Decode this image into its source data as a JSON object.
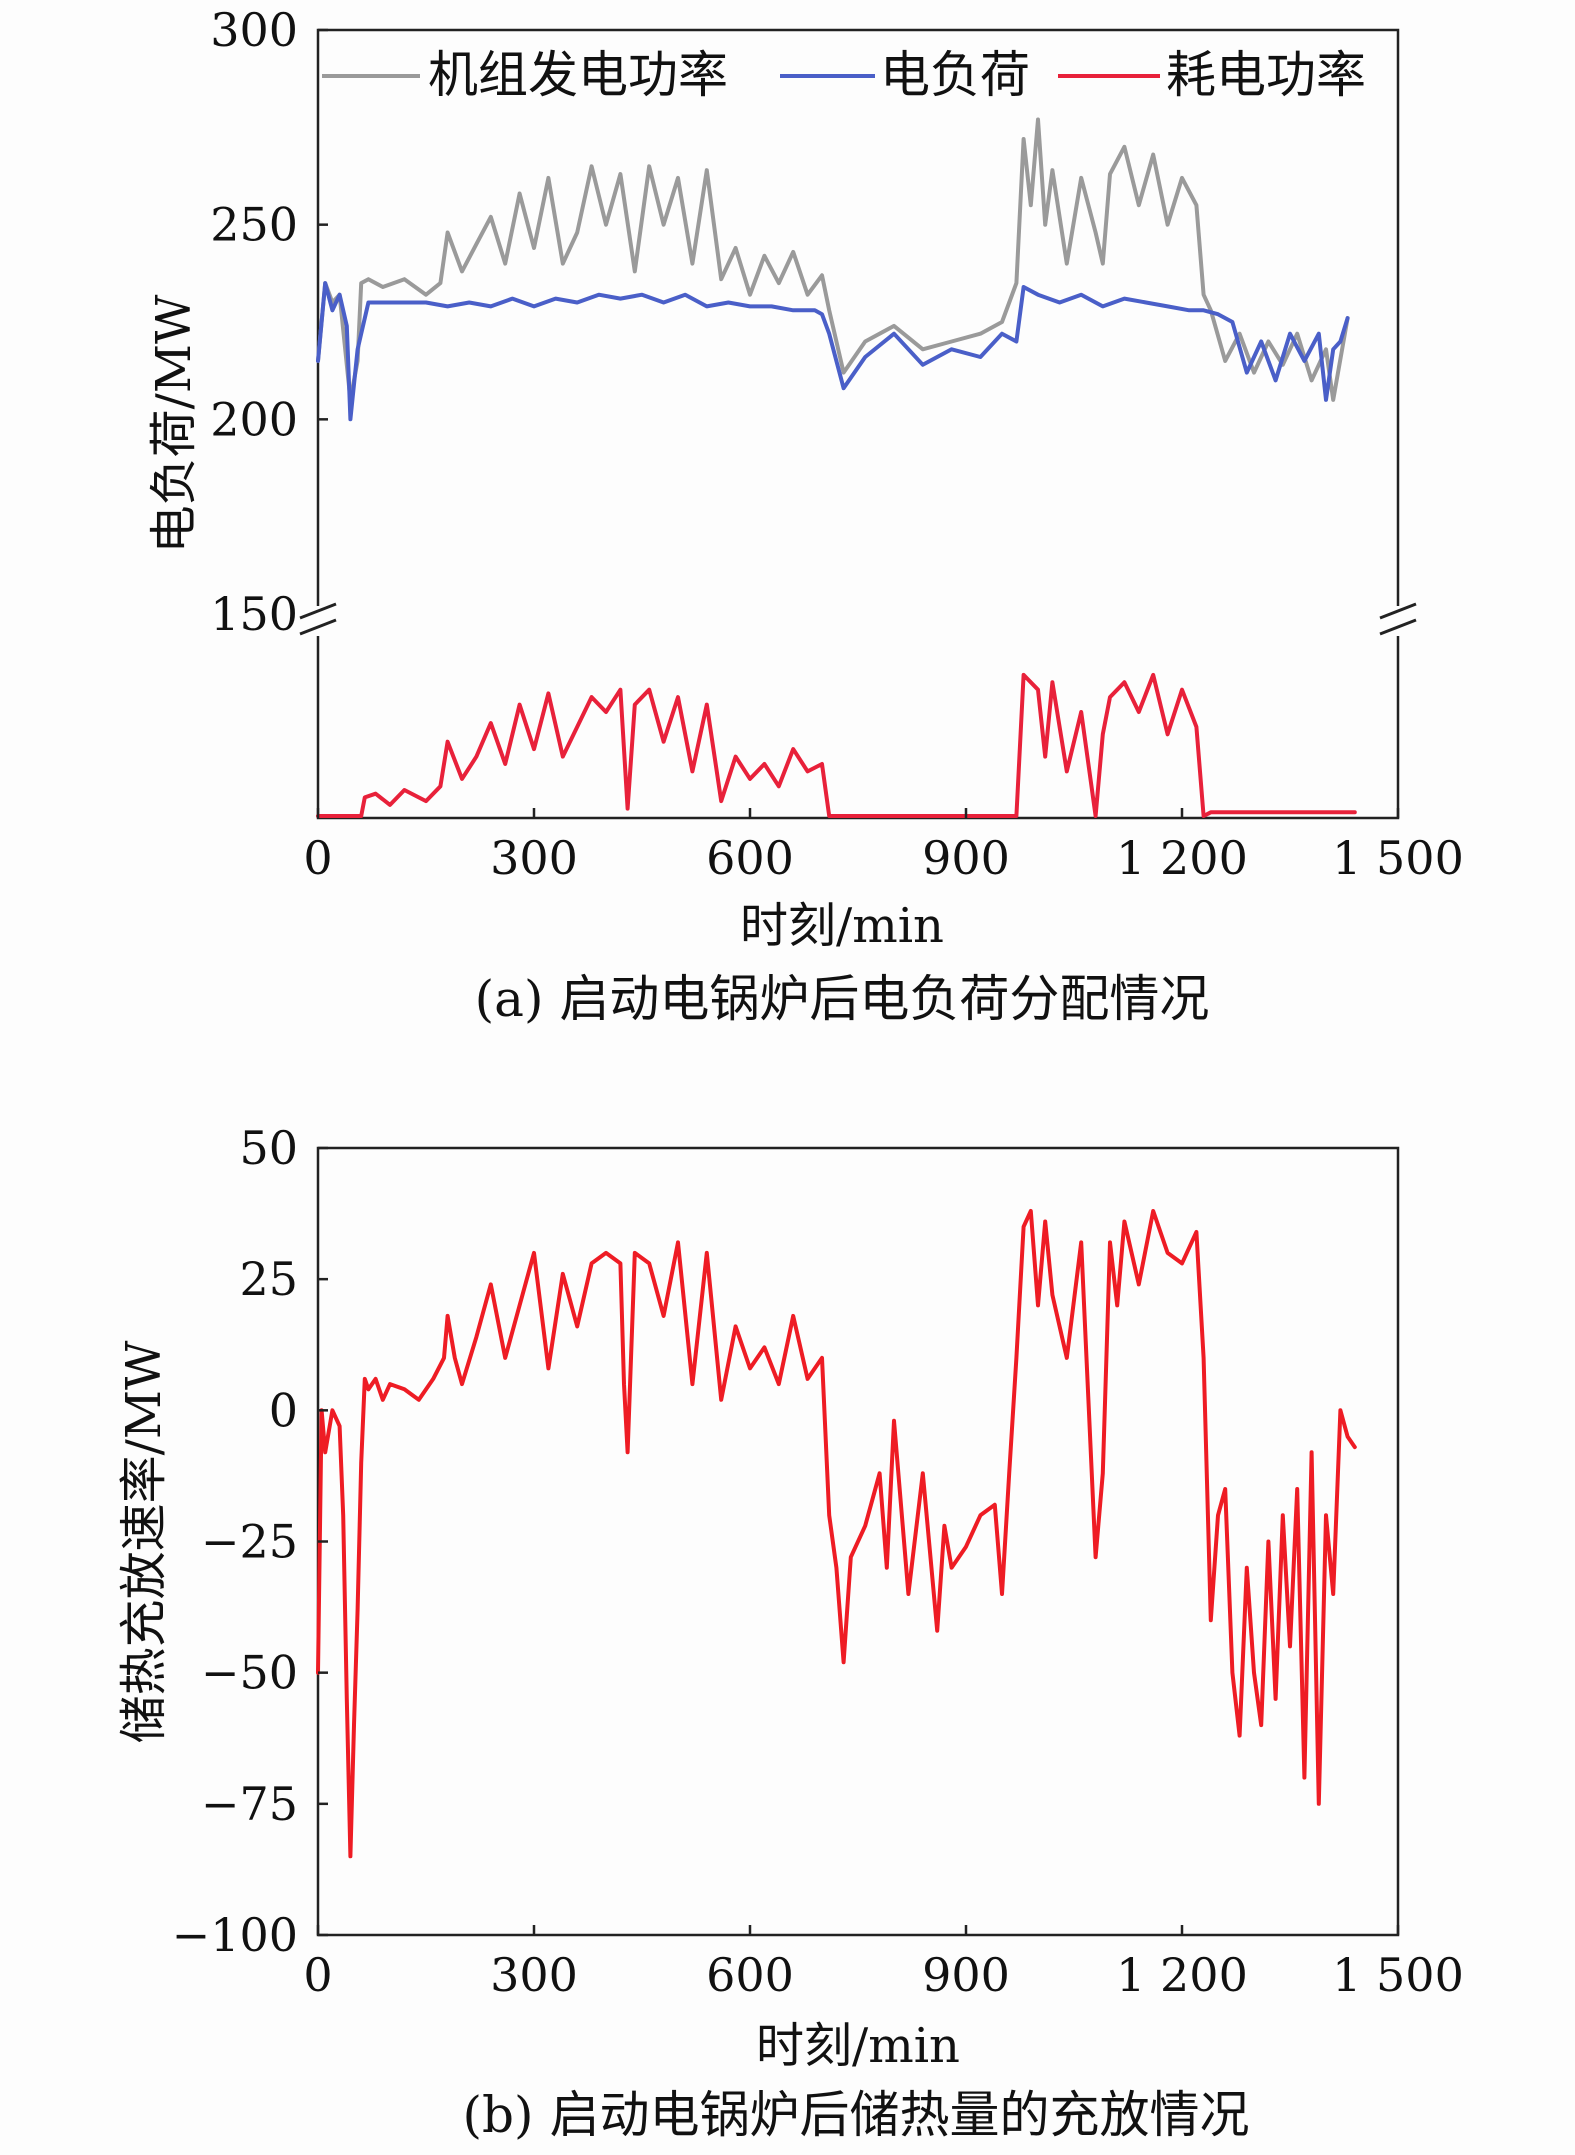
{
  "colors": {
    "generation": "#9a9a9a",
    "load": "#4a5fc8",
    "consumption": "#e8213a",
    "storage": "#ee1c24",
    "axis": "#222222"
  },
  "chart_data": [
    {
      "type": "line",
      "caption": "(a) 启动电锅炉后电负荷分配情况",
      "xlabel": "时刻/min",
      "ylabel": "电负荷/MW",
      "xlim": [
        0,
        1500
      ],
      "x_ticks": [
        "0",
        "300",
        "600",
        "900",
        "1 200",
        "1 500"
      ],
      "y_ticks": [
        "150",
        "200",
        "250",
        "300"
      ],
      "ylim_upper": [
        150,
        300
      ],
      "axis_break": true,
      "grid": false,
      "legend": {
        "position": "top",
        "items": [
          "机组发电功率",
          "电负荷",
          "耗电功率"
        ]
      },
      "series": [
        {
          "name": "机组发电功率",
          "x": [
            0,
            10,
            20,
            30,
            45,
            55,
            60,
            70,
            90,
            120,
            150,
            170,
            180,
            200,
            220,
            240,
            260,
            280,
            300,
            320,
            340,
            360,
            380,
            400,
            420,
            440,
            460,
            480,
            500,
            520,
            540,
            560,
            580,
            600,
            620,
            640,
            660,
            680,
            700,
            710,
            730,
            760,
            800,
            840,
            880,
            920,
            950,
            970,
            980,
            990,
            1000,
            1010,
            1020,
            1040,
            1060,
            1080,
            1090,
            1100,
            1120,
            1140,
            1160,
            1180,
            1200,
            1220,
            1230,
            1240,
            1260,
            1280,
            1300,
            1320,
            1340,
            1360,
            1380,
            1400,
            1410,
            1430
          ],
          "y": [
            215,
            235,
            230,
            232,
            205,
            215,
            235,
            236,
            234,
            236,
            232,
            235,
            248,
            238,
            245,
            252,
            240,
            258,
            244,
            262,
            240,
            248,
            265,
            250,
            263,
            238,
            265,
            250,
            262,
            240,
            264,
            236,
            244,
            232,
            242,
            235,
            243,
            232,
            237,
            228,
            212,
            220,
            224,
            218,
            220,
            222,
            225,
            235,
            272,
            255,
            277,
            250,
            264,
            240,
            262,
            248,
            240,
            263,
            270,
            255,
            268,
            250,
            262,
            255,
            232,
            228,
            215,
            222,
            212,
            220,
            214,
            222,
            210,
            218,
            205,
            226
          ]
        },
        {
          "name": "电负荷",
          "x": [
            0,
            10,
            20,
            30,
            40,
            45,
            55,
            60,
            70,
            90,
            120,
            150,
            180,
            210,
            240,
            270,
            300,
            330,
            360,
            390,
            420,
            450,
            480,
            510,
            540,
            570,
            600,
            630,
            660,
            690,
            700,
            710,
            730,
            760,
            800,
            840,
            880,
            920,
            950,
            970,
            980,
            1000,
            1030,
            1060,
            1090,
            1120,
            1150,
            1180,
            1210,
            1230,
            1250,
            1270,
            1290,
            1310,
            1330,
            1350,
            1370,
            1390,
            1400,
            1410,
            1420,
            1430
          ],
          "y": [
            215,
            235,
            228,
            232,
            224,
            200,
            218,
            222,
            230,
            230,
            230,
            230,
            229,
            230,
            229,
            231,
            229,
            231,
            230,
            232,
            231,
            232,
            230,
            232,
            229,
            230,
            229,
            229,
            228,
            228,
            227,
            222,
            208,
            216,
            222,
            214,
            218,
            216,
            222,
            220,
            234,
            232,
            230,
            232,
            229,
            231,
            230,
            229,
            228,
            228,
            227,
            225,
            212,
            220,
            210,
            222,
            215,
            222,
            205,
            218,
            220,
            226
          ]
        },
        {
          "name": "耗电功率",
          "x": [
            0,
            60,
            65,
            80,
            100,
            120,
            150,
            170,
            180,
            200,
            220,
            240,
            260,
            280,
            300,
            320,
            340,
            360,
            380,
            400,
            420,
            430,
            440,
            460,
            480,
            500,
            520,
            540,
            560,
            580,
            600,
            620,
            640,
            660,
            680,
            700,
            710,
            960,
            970,
            980,
            1000,
            1010,
            1020,
            1040,
            1060,
            1080,
            1090,
            1100,
            1120,
            1140,
            1160,
            1180,
            1200,
            1220,
            1230,
            1240,
            1280,
            1440
          ],
          "y": [
            0,
            0,
            5,
            6,
            3,
            7,
            4,
            8,
            20,
            10,
            16,
            25,
            14,
            30,
            18,
            33,
            16,
            24,
            32,
            28,
            34,
            2,
            30,
            34,
            20,
            32,
            12,
            30,
            4,
            16,
            10,
            14,
            8,
            18,
            12,
            14,
            0,
            0,
            0,
            38,
            34,
            16,
            36,
            12,
            28,
            0,
            22,
            32,
            36,
            28,
            38,
            22,
            34,
            24,
            0,
            1,
            1,
            1
          ]
        }
      ]
    },
    {
      "type": "line",
      "caption": "(b) 启动电锅炉后储热量的充放情况",
      "xlabel": "时刻/min",
      "ylabel": "储热充放速率/MW",
      "xlim": [
        0,
        1500
      ],
      "ylim": [
        -100,
        50
      ],
      "x_ticks": [
        "0",
        "300",
        "600",
        "900",
        "1 200",
        "1 500"
      ],
      "y_ticks": [
        "50",
        "25",
        "0",
        "−25",
        "−50",
        "−75",
        "−100"
      ],
      "y_tick_values": [
        50,
        25,
        0,
        -25,
        -50,
        -75,
        -100
      ],
      "grid": false,
      "series": [
        {
          "x": [
            0,
            5,
            10,
            20,
            30,
            35,
            40,
            45,
            50,
            55,
            60,
            65,
            70,
            80,
            90,
            100,
            120,
            140,
            160,
            175,
            180,
            190,
            200,
            220,
            240,
            260,
            280,
            300,
            320,
            340,
            360,
            380,
            400,
            420,
            425,
            430,
            440,
            460,
            480,
            500,
            520,
            540,
            560,
            580,
            600,
            620,
            640,
            660,
            680,
            700,
            710,
            720,
            730,
            740,
            760,
            780,
            790,
            800,
            820,
            840,
            860,
            870,
            880,
            900,
            920,
            940,
            950,
            960,
            970,
            980,
            990,
            1000,
            1010,
            1020,
            1040,
            1060,
            1080,
            1090,
            1100,
            1110,
            1120,
            1140,
            1160,
            1180,
            1200,
            1220,
            1230,
            1240,
            1250,
            1260,
            1270,
            1280,
            1290,
            1300,
            1310,
            1320,
            1330,
            1340,
            1350,
            1360,
            1370,
            1380,
            1390,
            1400,
            1410,
            1420,
            1430,
            1440
          ],
          "y": [
            -50,
            0,
            -8,
            0,
            -3,
            -20,
            -55,
            -85,
            -60,
            -38,
            -10,
            6,
            4,
            6,
            2,
            5,
            4,
            2,
            6,
            10,
            18,
            10,
            5,
            14,
            24,
            10,
            20,
            30,
            8,
            26,
            16,
            28,
            30,
            28,
            5,
            -8,
            30,
            28,
            18,
            32,
            5,
            30,
            2,
            16,
            8,
            12,
            5,
            18,
            6,
            10,
            -20,
            -30,
            -48,
            -28,
            -22,
            -12,
            -30,
            -2,
            -35,
            -12,
            -42,
            -22,
            -30,
            -26,
            -20,
            -18,
            -35,
            -12,
            10,
            35,
            38,
            20,
            36,
            22,
            10,
            32,
            -28,
            -12,
            32,
            20,
            36,
            24,
            38,
            30,
            28,
            34,
            10,
            -40,
            -20,
            -15,
            -50,
            -62,
            -30,
            -50,
            -60,
            -25,
            -55,
            -20,
            -45,
            -15,
            -70,
            -8,
            -75,
            -20,
            -35,
            0,
            -5,
            -7
          ]
        }
      ]
    }
  ]
}
